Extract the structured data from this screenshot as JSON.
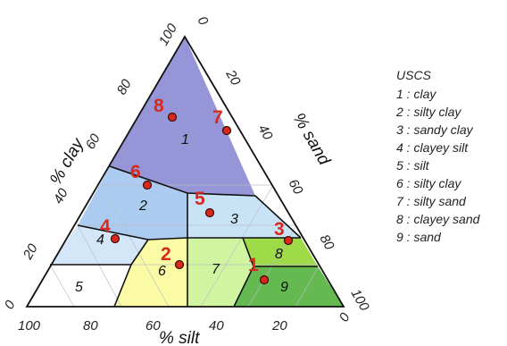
{
  "diagram": {
    "axes": {
      "clay": {
        "title": "% clay",
        "ticks": [
          "0",
          "20",
          "40",
          "60",
          "80",
          "100"
        ]
      },
      "sand": {
        "title": "% sand",
        "ticks": [
          "0",
          "20",
          "40",
          "60",
          "80",
          "100"
        ]
      },
      "silt": {
        "title": "% silt",
        "ticks": [
          "100",
          "80",
          "60",
          "40",
          "20",
          "0"
        ]
      }
    },
    "zones": [
      {
        "id": "1",
        "color": "#8f8fd6"
      },
      {
        "id": "2",
        "color": "#a8c8ef"
      },
      {
        "id": "3",
        "color": "#c6e1f6"
      },
      {
        "id": "4",
        "color": "#d2e6f8"
      },
      {
        "id": "5",
        "color": "#ffffff"
      },
      {
        "id": "6",
        "color": "#fbfba0"
      },
      {
        "id": "7",
        "color": "#cdf39a"
      },
      {
        "id": "8",
        "color": "#9ad83e"
      },
      {
        "id": "9",
        "color": "#5cb548"
      }
    ],
    "markers": [
      "1",
      "2",
      "3",
      "4",
      "5",
      "6",
      "7",
      "8"
    ],
    "marker_color": "#d9281c"
  },
  "legend": {
    "title": "USCS",
    "items": [
      "1 : clay",
      "2 : silty clay",
      "3 : sandy clay",
      "4 : clayey silt",
      "5 : silt",
      "6 : silty clay",
      "7 : silty sand",
      "8 : clayey sand",
      "9 : sand"
    ]
  }
}
